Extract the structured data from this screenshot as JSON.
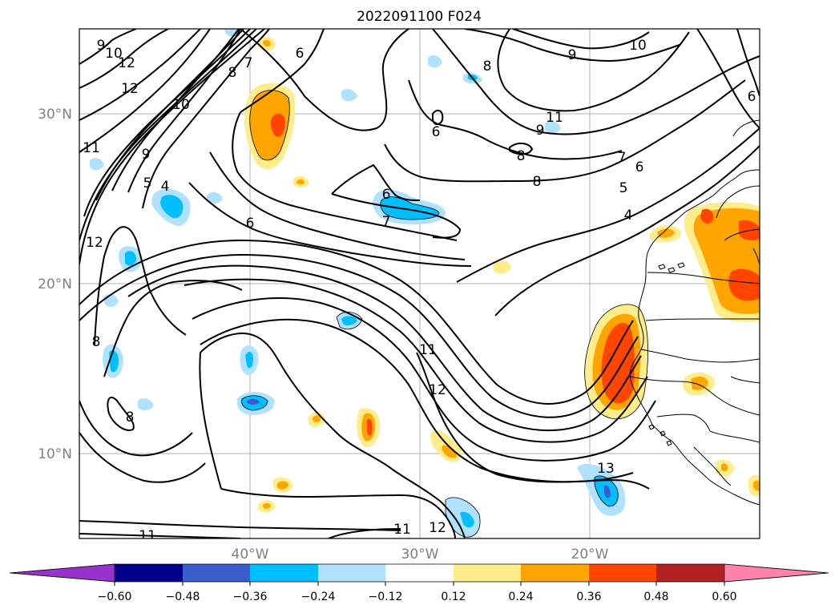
{
  "title": "2022091100 F024",
  "lat_labels": [
    "30°N",
    "20°N",
    "10°N"
  ],
  "lon_labels": [
    "40°W",
    "30°W",
    "20°W"
  ],
  "colorbar": {
    "colors": [
      "#9932cc",
      "#00008b",
      "#3a5fcd",
      "#00bfff",
      "#b0e2ff",
      "#ffffff",
      "#ffec8b",
      "#ffa500",
      "#ff4500",
      "#b22222",
      "#ff82ab"
    ],
    "ticks": [
      "−0.60",
      "−0.48",
      "−0.36",
      "−0.24",
      "−0.12",
      "0.12",
      "0.24",
      "0.36",
      "0.48",
      "0.60"
    ]
  },
  "contour_labels": [
    "9",
    "10",
    "12",
    "12",
    "10",
    "9",
    "8",
    "5",
    "4",
    "11",
    "12",
    "8",
    "8",
    "7",
    "6",
    "6",
    "6",
    "7",
    "6",
    "8",
    "8",
    "8",
    "9",
    "11",
    "9",
    "10",
    "6",
    "7",
    "6",
    "5",
    "4",
    "11",
    "12",
    "13",
    "11",
    "11",
    "12"
  ]
}
